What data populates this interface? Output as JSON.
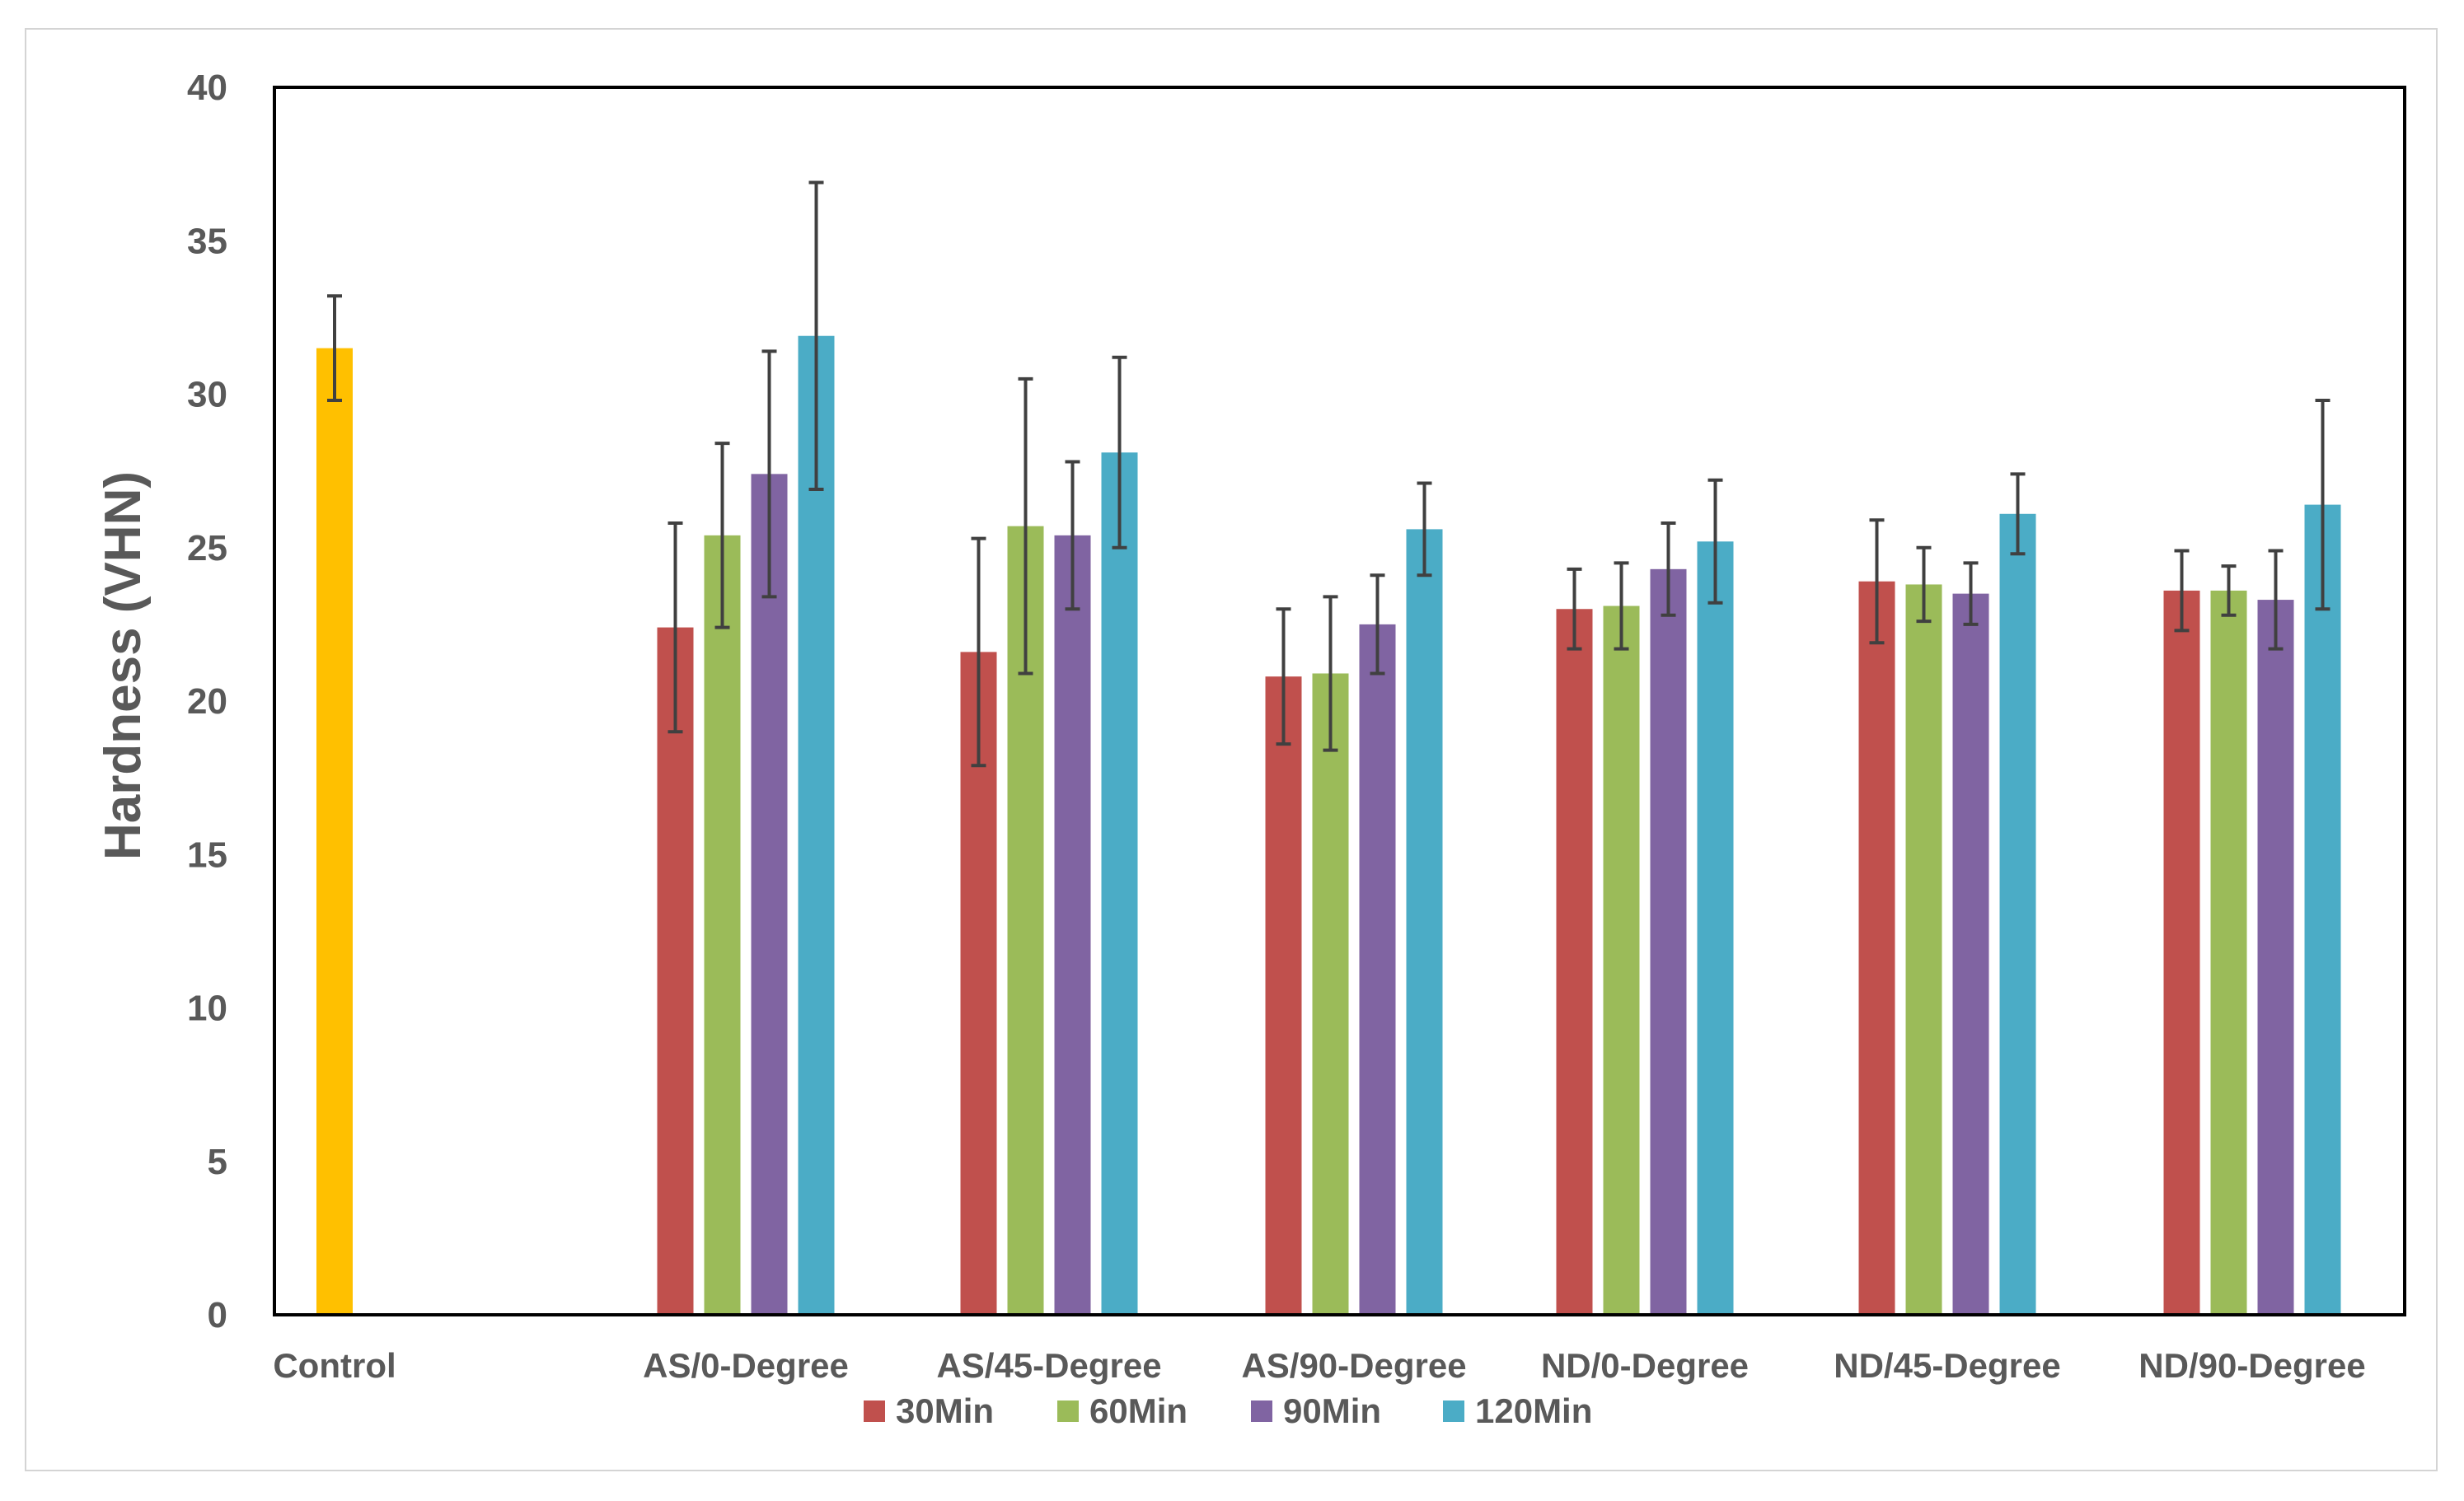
{
  "chart_data": {
    "type": "bar",
    "title": "",
    "xlabel": "",
    "ylabel": "Hardness (VHN)",
    "ylim": [
      0,
      40
    ],
    "yticks": [
      0,
      5,
      10,
      15,
      20,
      25,
      30,
      35,
      40
    ],
    "grid": false,
    "legend_position": "bottom",
    "categories": [
      "Control",
      "AS/0-Degree",
      "AS/45-Degree",
      "AS/90-Degree",
      "ND/0-Degree",
      "ND/45-Degree",
      "ND/90-Degree"
    ],
    "control": {
      "value": 31.5,
      "error": 1.7,
      "color": "#FFC000"
    },
    "series": [
      {
        "name": "30Min",
        "color": "#C0504D",
        "values": [
          null,
          22.4,
          21.6,
          20.8,
          23.0,
          23.9,
          23.6
        ],
        "errors": [
          null,
          3.4,
          3.7,
          2.2,
          1.3,
          2.0,
          1.3
        ]
      },
      {
        "name": "60Min",
        "color": "#9BBB59",
        "values": [
          null,
          25.4,
          25.7,
          20.9,
          23.1,
          23.8,
          23.6
        ],
        "errors": [
          null,
          3.0,
          4.8,
          2.5,
          1.4,
          1.2,
          0.8
        ]
      },
      {
        "name": "90Min",
        "color": "#8064A2",
        "values": [
          null,
          27.4,
          25.4,
          22.5,
          24.3,
          23.5,
          23.3
        ],
        "errors": [
          null,
          4.0,
          2.4,
          1.6,
          1.5,
          1.0,
          1.6
        ]
      },
      {
        "name": "120Min",
        "color": "#4BACC6",
        "values": [
          null,
          31.9,
          28.1,
          25.6,
          25.2,
          26.1,
          26.4
        ],
        "errors": [
          null,
          5.0,
          3.1,
          1.5,
          2.0,
          1.3,
          3.4
        ]
      }
    ]
  }
}
